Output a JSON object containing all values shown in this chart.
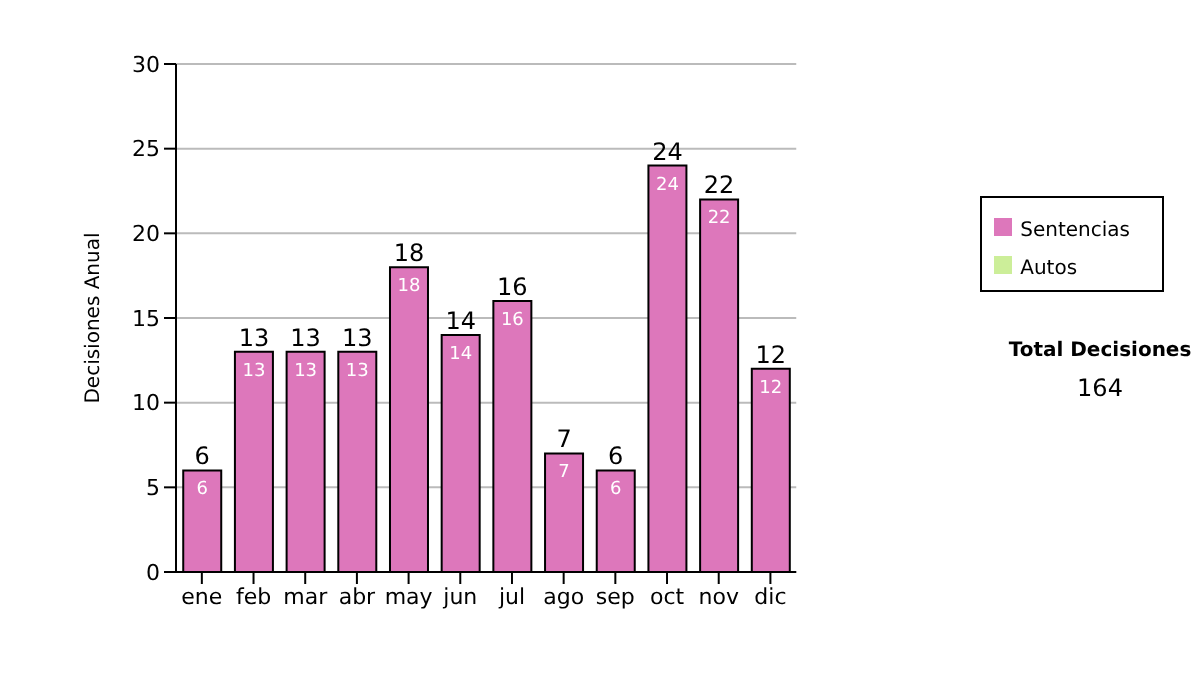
{
  "chart_data": {
    "type": "bar",
    "ylabel": "Decisiones Anual",
    "categories": [
      "ene",
      "feb",
      "mar",
      "abr",
      "may",
      "jun",
      "jul",
      "ago",
      "sep",
      "oct",
      "nov",
      "dic"
    ],
    "series": [
      {
        "name": "Sentencias",
        "color": "#dd77bb",
        "values": [
          6,
          13,
          13,
          13,
          18,
          14,
          16,
          7,
          6,
          24,
          22,
          12
        ],
        "value_labels": [
          "6",
          "13",
          "13",
          "13",
          "18",
          "14",
          "16",
          "7",
          "6",
          "24",
          "22",
          "12"
        ]
      },
      {
        "name": "Autos",
        "color": "#ccee99",
        "values": [
          0,
          0,
          0,
          0,
          0,
          0,
          0,
          0,
          0,
          0,
          0,
          0
        ]
      }
    ],
    "stacked": true,
    "totals": [
      "6",
      "13",
      "13",
      "13",
      "18",
      "14",
      "16",
      "7",
      "6",
      "24",
      "22",
      "12"
    ],
    "ylim": [
      0,
      30
    ],
    "yticks": [
      0,
      5,
      10,
      15,
      20,
      25,
      30
    ],
    "grid": "y",
    "legend": "right",
    "annotations": [
      "Total Decisiones",
      "164"
    ]
  }
}
